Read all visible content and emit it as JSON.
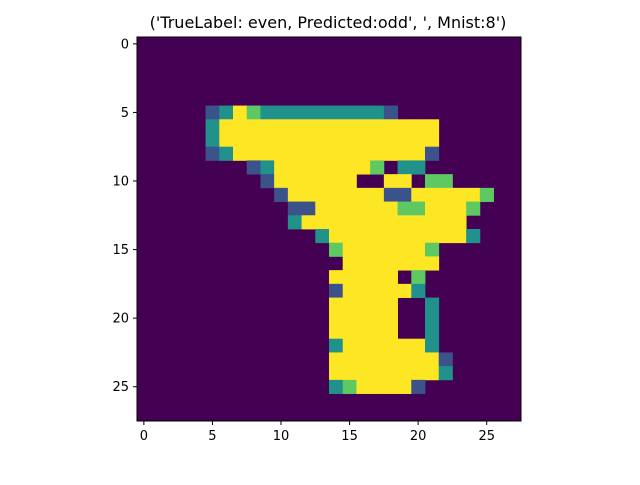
{
  "chart_data": {
    "type": "heatmap",
    "title": "('TrueLabel: even, Predicted:odd', ', Mnist:8')",
    "xlabel": "",
    "ylabel": "",
    "xlim": [
      -0.5,
      27.5
    ],
    "ylim": [
      27.5,
      -0.5
    ],
    "x_ticks": [
      0,
      5,
      10,
      15,
      20,
      25
    ],
    "y_ticks": [
      0,
      5,
      10,
      15,
      20,
      25
    ],
    "x_tick_labels": [
      "0",
      "5",
      "10",
      "15",
      "20",
      "25"
    ],
    "y_tick_labels": [
      "0",
      "5",
      "10",
      "15",
      "20",
      "25"
    ],
    "grid": false,
    "colormap": "viridis",
    "palette": {
      "0": "#440154",
      "1": "#3b528b",
      "2": "#21918c",
      "3": "#5ec962",
      "4": "#fde725"
    },
    "rows": [
      "............................",
      "............................",
      "............................",
      "............................",
      "............................",
      ".....12432222222221.........",
      ".....24444444444444444......",
      ".....24444444444444444......",
      ".....12444444444444441......",
      "........1244444443.22.......",
      ".........1444444..44.33.....",
      "..........1444444411444443..",
      "...........11444444334443...",
      "...........2444444444444....",
      ".............244444444442...",
      "..............34444443......",
      "...............4444444......",
      "..............44444.3.......",
      "..............1444442.......",
      "..............44444..2......",
      "..............44444..2......",
      "..............44444..2......",
      "..............24444442......",
      "..............444444441.....",
      "..............444444442.....",
      "..............2344441.......",
      "............................",
      "............................"
    ]
  }
}
